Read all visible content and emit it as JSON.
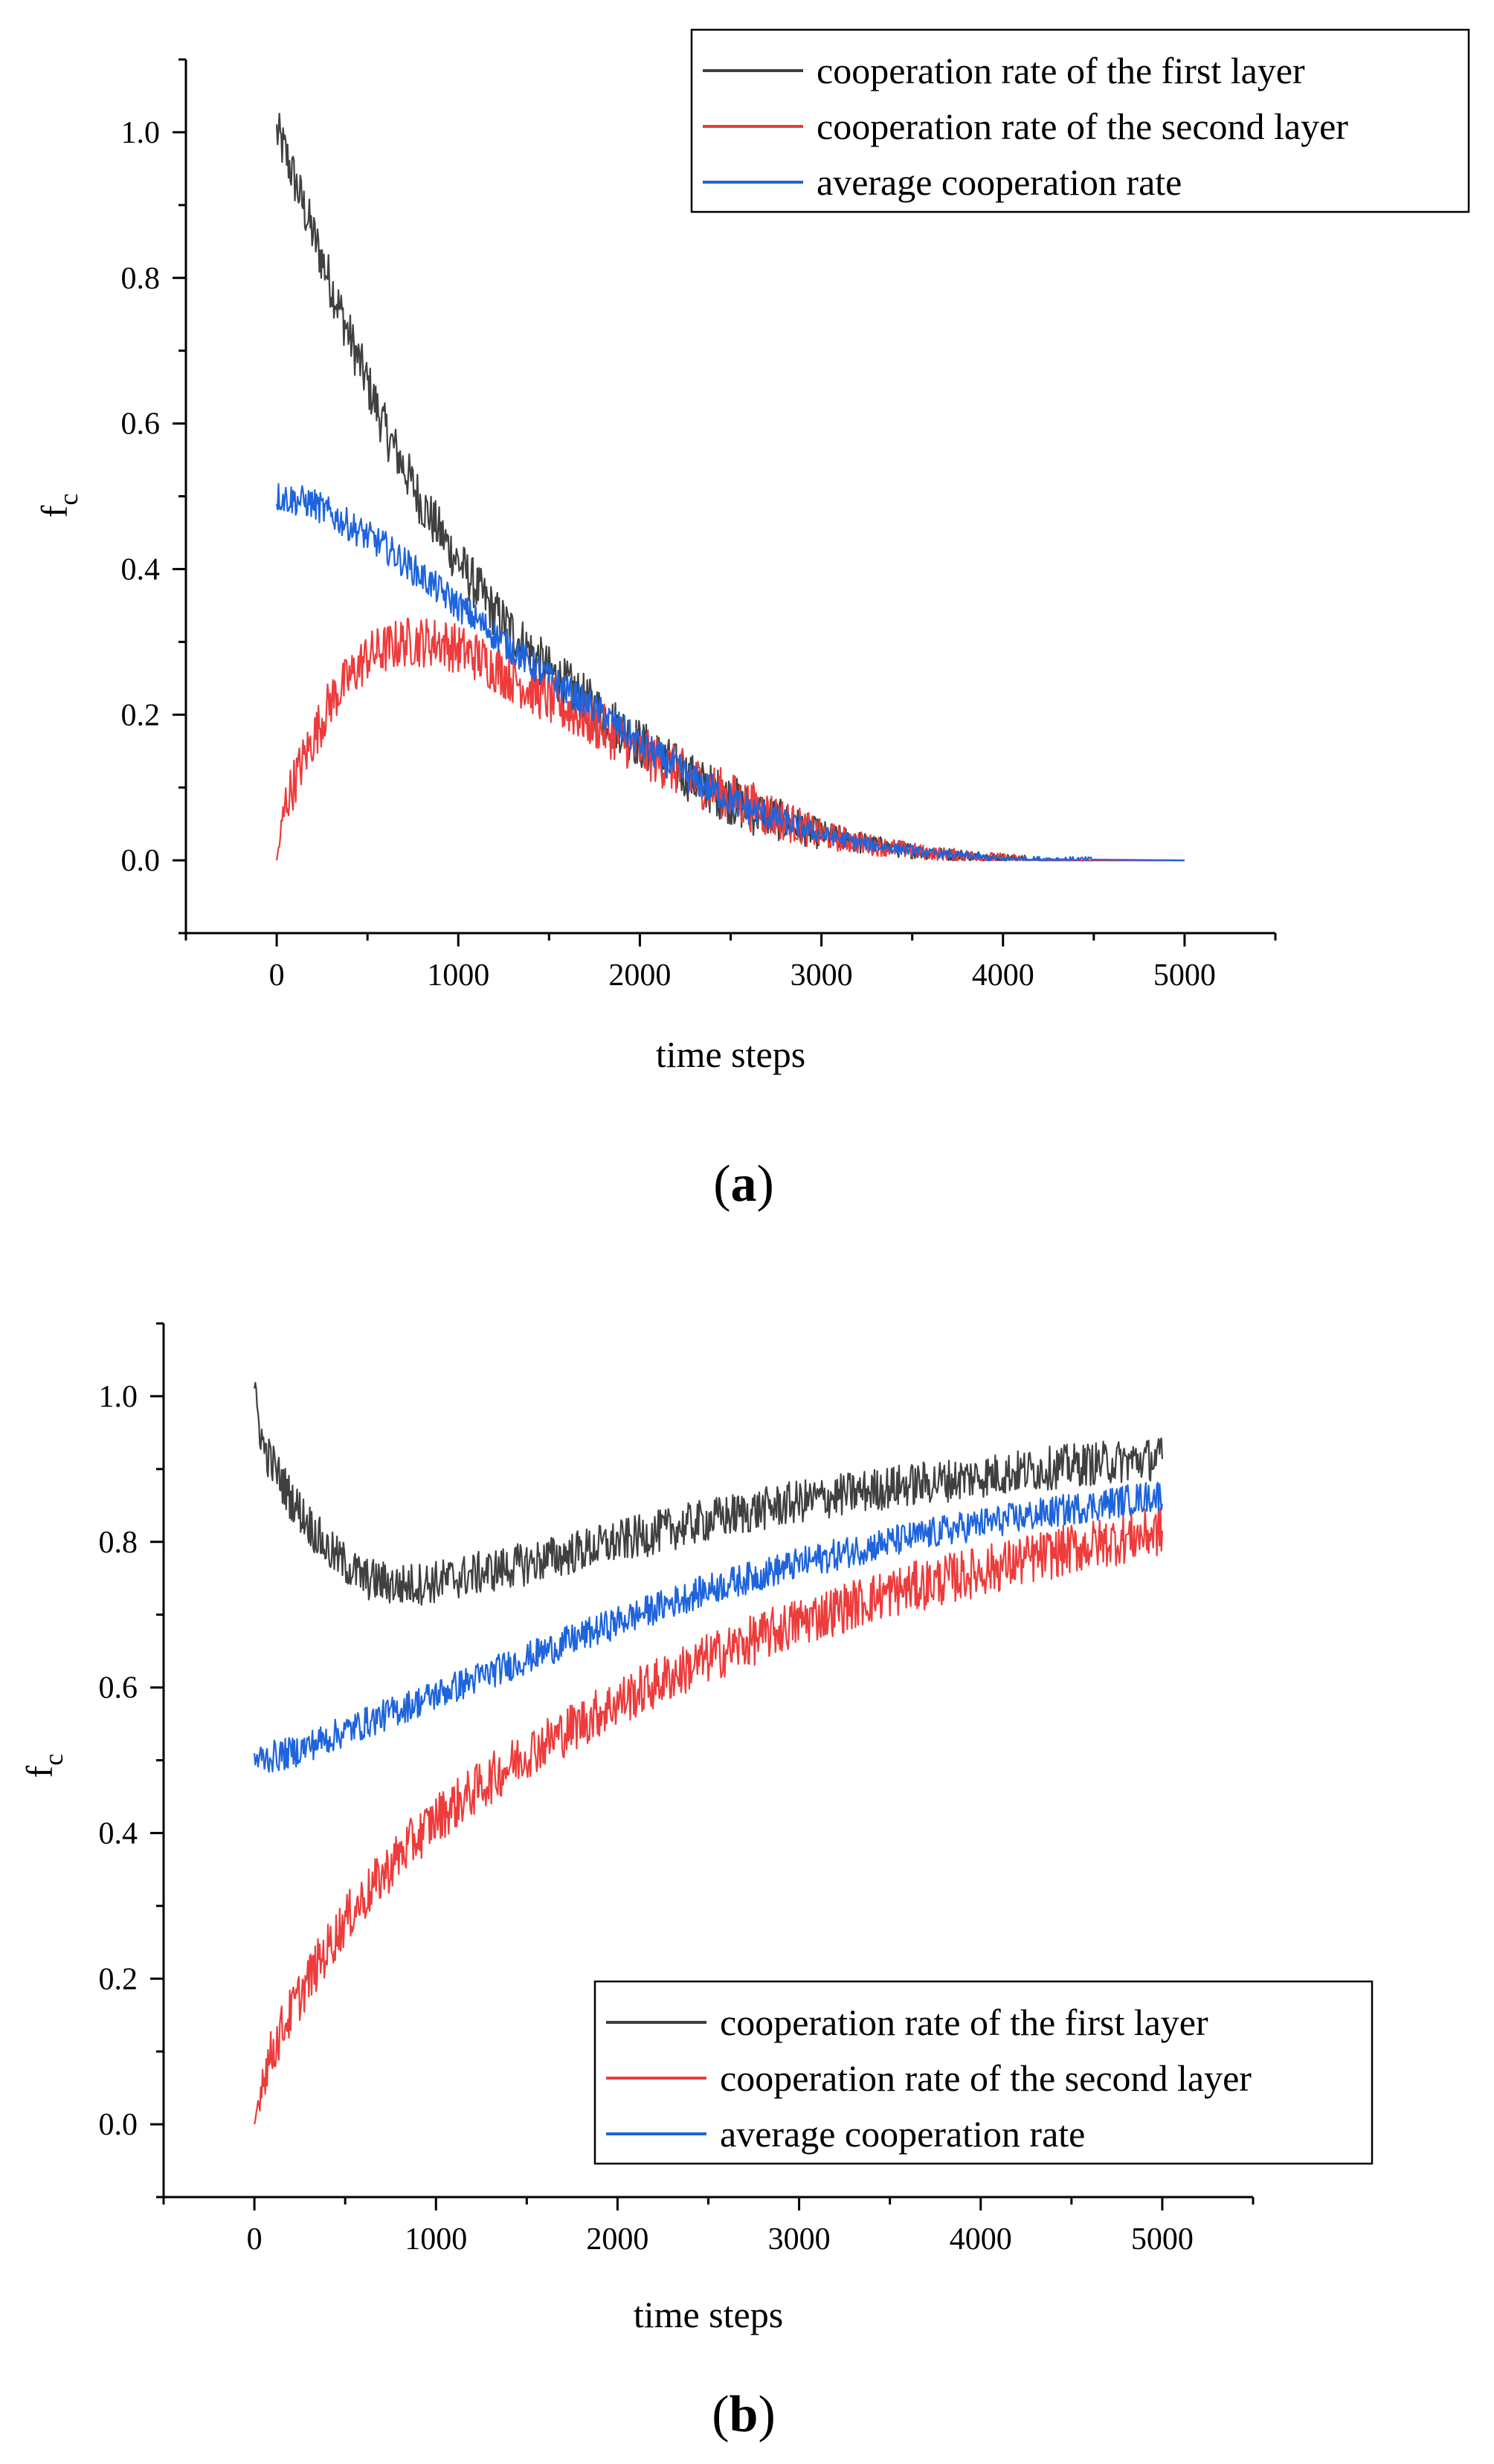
{
  "chart_data": [
    {
      "type": "line",
      "panel_label": "(a)",
      "xlabel": "time steps",
      "ylabel_main": "f",
      "ylabel_sub": "c",
      "xlim": [
        -500,
        5500
      ],
      "ylim": [
        -0.1,
        1.1
      ],
      "xticks": [
        0,
        1000,
        2000,
        3000,
        4000,
        5000
      ],
      "xtick_labels": [
        "0",
        "1000",
        "2000",
        "3000",
        "4000",
        "5000"
      ],
      "yticks": [
        0.0,
        0.2,
        0.4,
        0.6,
        0.8,
        1.0
      ],
      "ytick_labels": [
        "0.0",
        "0.2",
        "0.4",
        "0.6",
        "0.8",
        "1.0"
      ],
      "grid": false,
      "legend_position": "top-right",
      "series": [
        {
          "name": "cooperation rate of the first layer",
          "color": "#404040",
          "noise": 0.035,
          "x": [
            0,
            50,
            200,
            400,
            600,
            800,
            1000,
            1200,
            1500,
            1800,
            2000,
            2300,
            2600,
            3000,
            3300,
            3600,
            4000,
            4200,
            5000
          ],
          "y": [
            1.0,
            0.97,
            0.86,
            0.72,
            0.59,
            0.49,
            0.41,
            0.34,
            0.26,
            0.2,
            0.16,
            0.11,
            0.07,
            0.035,
            0.02,
            0.01,
            0.003,
            0.0,
            0.0
          ]
        },
        {
          "name": "cooperation rate of the second layer",
          "color": "#ee3b3b",
          "noise": 0.035,
          "x": [
            0,
            50,
            150,
            300,
            500,
            700,
            900,
            1100,
            1300,
            1500,
            1800,
            2000,
            2300,
            2600,
            3000,
            3300,
            3600,
            4000,
            4200,
            5000
          ],
          "y": [
            0.0,
            0.08,
            0.14,
            0.22,
            0.28,
            0.3,
            0.3,
            0.28,
            0.25,
            0.22,
            0.18,
            0.15,
            0.11,
            0.075,
            0.035,
            0.02,
            0.01,
            0.003,
            0.0,
            0.0
          ]
        },
        {
          "name": "average cooperation rate",
          "color": "#1e64dc",
          "noise": 0.022,
          "x": [
            0,
            200,
            400,
            600,
            800,
            1000,
            1200,
            1500,
            1800,
            2000,
            2300,
            2600,
            3000,
            3300,
            3600,
            4000,
            5000
          ],
          "y": [
            0.5,
            0.49,
            0.46,
            0.43,
            0.39,
            0.35,
            0.31,
            0.25,
            0.2,
            0.16,
            0.11,
            0.07,
            0.035,
            0.02,
            0.01,
            0.002,
            0.0
          ]
        }
      ]
    },
    {
      "type": "line",
      "panel_label": "(b)",
      "xlabel": "time steps",
      "ylabel_main": "f",
      "ylabel_sub": "c",
      "xlim": [
        -500,
        5500
      ],
      "ylim": [
        -0.1,
        1.1
      ],
      "xticks": [
        0,
        1000,
        2000,
        3000,
        4000,
        5000
      ],
      "xtick_labels": [
        "0",
        "1000",
        "2000",
        "3000",
        "4000",
        "5000"
      ],
      "yticks": [
        0.0,
        0.2,
        0.4,
        0.6,
        0.8,
        1.0
      ],
      "ytick_labels": [
        "0.0",
        "0.2",
        "0.4",
        "0.6",
        "0.8",
        "1.0"
      ],
      "grid": false,
      "legend_position": "bottom-right",
      "series": [
        {
          "name": "cooperation rate of the first layer",
          "color": "#404040",
          "noise": 0.03,
          "x": [
            0,
            50,
            200,
            400,
            600,
            800,
            1000,
            1500,
            2000,
            2500,
            3000,
            3500,
            4000,
            4500,
            5000
          ],
          "y": [
            1.0,
            0.93,
            0.86,
            0.79,
            0.75,
            0.74,
            0.745,
            0.77,
            0.8,
            0.83,
            0.855,
            0.875,
            0.89,
            0.905,
            0.915
          ]
        },
        {
          "name": "cooperation rate of the second layer",
          "color": "#ee3b3b",
          "noise": 0.035,
          "x": [
            0,
            50,
            150,
            300,
            500,
            800,
            1000,
            1500,
            2000,
            2500,
            3000,
            3500,
            4000,
            4500,
            5000
          ],
          "y": [
            0.0,
            0.07,
            0.13,
            0.2,
            0.28,
            0.37,
            0.42,
            0.51,
            0.58,
            0.64,
            0.69,
            0.73,
            0.76,
            0.79,
            0.815
          ]
        },
        {
          "name": "average cooperation rate",
          "color": "#1e64dc",
          "noise": 0.022,
          "x": [
            0,
            200,
            500,
            1000,
            1500,
            2000,
            2500,
            3000,
            3500,
            4000,
            4500,
            5000
          ],
          "y": [
            0.5,
            0.51,
            0.54,
            0.59,
            0.64,
            0.69,
            0.735,
            0.77,
            0.8,
            0.825,
            0.845,
            0.865
          ]
        }
      ]
    }
  ]
}
